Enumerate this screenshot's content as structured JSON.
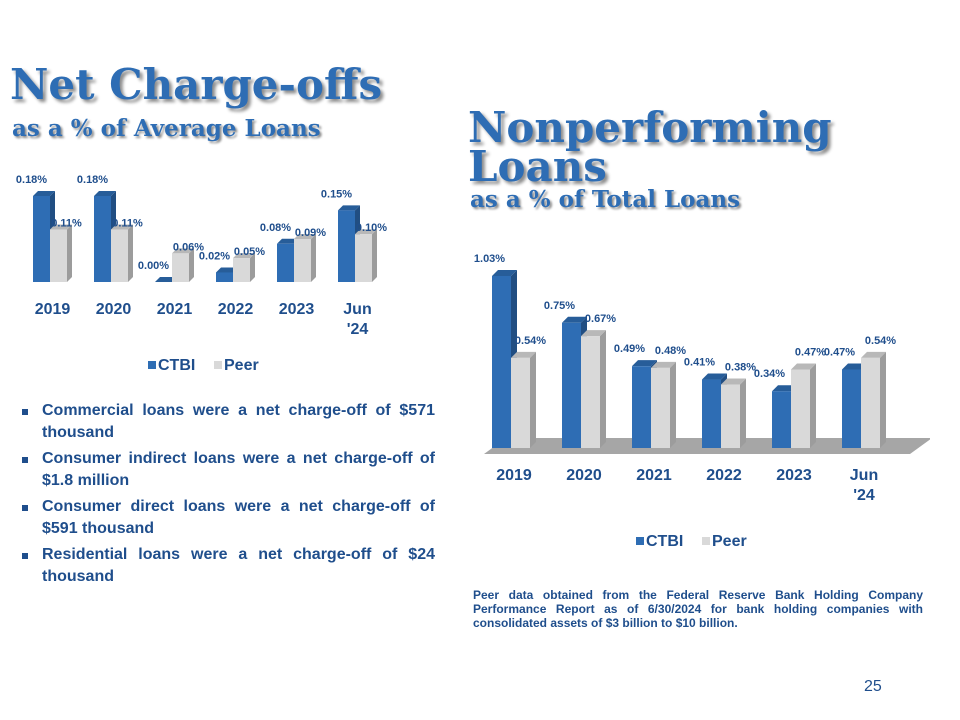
{
  "left": {
    "title": "Net Charge-offs",
    "subtitle": "as a % of Average Loans"
  },
  "right": {
    "title_line1": "Nonperforming",
    "title_line2": "Loans",
    "subtitle": "as a % of Total Loans"
  },
  "colors": {
    "ctbi": "#2e6db4",
    "peer": "#d9d9d9",
    "text": "#1f4e8c"
  },
  "chart_data": [
    {
      "type": "bar",
      "title": "Net Charge-offs",
      "subtitle": "as a % of Average Loans",
      "categories": [
        "2019",
        "2020",
        "2021",
        "2022",
        "2023",
        "Jun '24"
      ],
      "series": [
        {
          "name": "CTBI",
          "values": [
            0.18,
            0.18,
            0.0,
            0.02,
            0.08,
            0.15
          ],
          "labels": [
            "0.18%",
            "0.18%",
            "0.00%",
            "0.02%",
            "0.08%",
            "0.15%"
          ]
        },
        {
          "name": "Peer",
          "values": [
            0.11,
            0.11,
            0.06,
            0.05,
            0.09,
            0.1
          ],
          "labels": [
            "0.11%",
            "0.11%",
            "0.06%",
            "0.05%",
            "0.09%",
            "0.10%"
          ]
        }
      ],
      "ylim": [
        0,
        0.18
      ],
      "grid": false,
      "legend": "bottom"
    },
    {
      "type": "bar",
      "title": "Nonperforming Loans",
      "subtitle": "as a % of Total Loans",
      "categories": [
        "2019",
        "2020",
        "2021",
        "2022",
        "2023",
        "Jun '24"
      ],
      "series": [
        {
          "name": "CTBI",
          "values": [
            1.03,
            0.75,
            0.49,
            0.41,
            0.34,
            0.47
          ],
          "labels": [
            "1.03%",
            "0.75%",
            "0.49%",
            "0.41%",
            "0.34%",
            "0.47%"
          ]
        },
        {
          "name": "Peer",
          "values": [
            0.54,
            0.67,
            0.48,
            0.38,
            0.47,
            0.54
          ],
          "labels": [
            "0.54%",
            "0.67%",
            "0.48%",
            "0.38%",
            "0.47%",
            "0.54%"
          ]
        }
      ],
      "ylim": [
        0,
        1.03
      ],
      "grid": false,
      "legend": "bottom"
    }
  ],
  "bullets": [
    "Commercial loans were a net charge-off of $571 thousand",
    "Consumer indirect loans were a net charge-off of $1.8 million",
    "Consumer direct loans were a net charge-off of $591 thousand",
    "Residential loans were a net charge-off of $24 thousand"
  ],
  "footnote": "Peer data obtained from the Federal Reserve Bank Holding Company Performance Report as of 6/30/2024 for bank holding companies with consolidated assets of $3 billion to $10 billion.",
  "page_number": "25"
}
